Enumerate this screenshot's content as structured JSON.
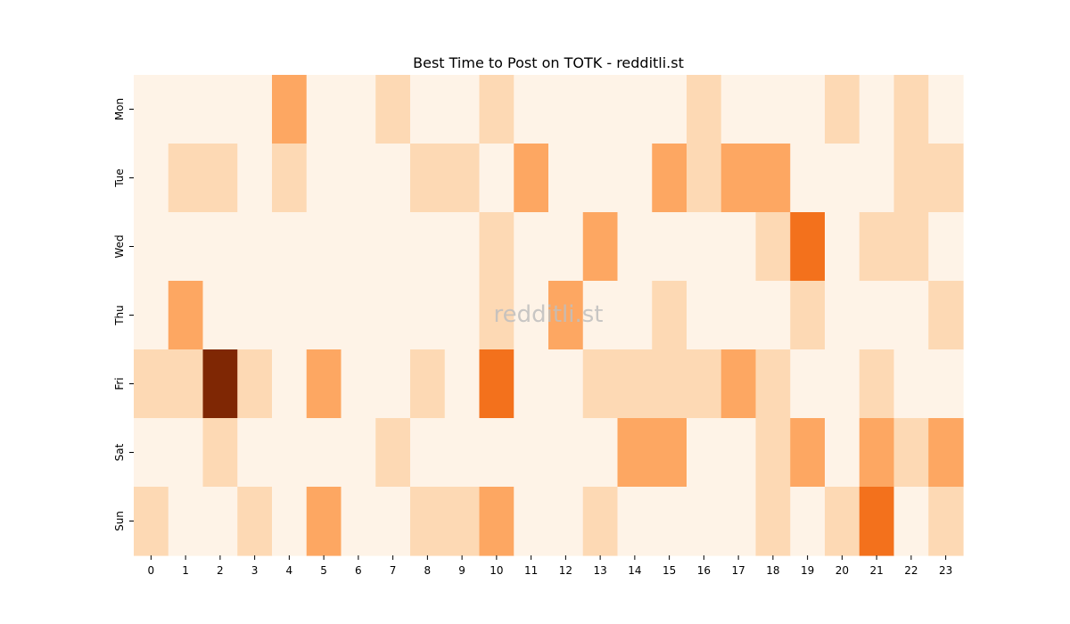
{
  "chart_data": {
    "type": "heatmap",
    "title": "Best Time to Post on TOTK - redditli.st",
    "xlabel": "",
    "ylabel": "",
    "x_categories": [
      "0",
      "1",
      "2",
      "3",
      "4",
      "5",
      "6",
      "7",
      "8",
      "9",
      "10",
      "11",
      "12",
      "13",
      "14",
      "15",
      "16",
      "17",
      "18",
      "19",
      "20",
      "21",
      "22",
      "23"
    ],
    "y_categories": [
      "Mon",
      "Tue",
      "Wed",
      "Thu",
      "Fri",
      "Sat",
      "Sun"
    ],
    "values": [
      [
        0,
        0,
        0,
        0,
        2,
        0,
        0,
        1,
        0,
        0,
        1,
        0,
        0,
        0,
        0,
        0,
        1,
        0,
        0,
        0,
        1,
        0,
        1,
        0
      ],
      [
        0,
        1,
        1,
        0,
        1,
        0,
        0,
        0,
        1,
        1,
        0,
        2,
        0,
        0,
        0,
        2,
        1,
        2,
        2,
        0,
        0,
        0,
        1,
        1
      ],
      [
        0,
        0,
        0,
        0,
        0,
        0,
        0,
        0,
        0,
        0,
        1,
        0,
        0,
        2,
        0,
        0,
        0,
        0,
        1,
        3,
        0,
        1,
        1,
        0
      ],
      [
        0,
        2,
        0,
        0,
        0,
        0,
        0,
        0,
        0,
        0,
        1,
        0,
        2,
        0,
        0,
        1,
        0,
        0,
        0,
        1,
        0,
        0,
        0,
        1
      ],
      [
        1,
        1,
        5,
        1,
        0,
        2,
        0,
        0,
        1,
        0,
        3,
        0,
        0,
        1,
        1,
        1,
        1,
        2,
        1,
        0,
        0,
        1,
        0,
        0
      ],
      [
        0,
        0,
        1,
        0,
        0,
        0,
        0,
        1,
        0,
        0,
        0,
        0,
        0,
        0,
        2,
        2,
        0,
        0,
        1,
        2,
        0,
        2,
        1,
        2
      ],
      [
        1,
        0,
        0,
        1,
        0,
        2,
        0,
        0,
        1,
        1,
        2,
        0,
        0,
        1,
        0,
        0,
        0,
        0,
        1,
        0,
        1,
        3,
        0,
        1
      ]
    ],
    "colormap": "Oranges",
    "color_levels": {
      "0": "#fef3e7",
      "1": "#fdd9b4",
      "2": "#fda762",
      "3": "#f3711c",
      "5": "#7f2704"
    },
    "watermark": "redditli.st",
    "colorbar": false,
    "grid": false
  }
}
